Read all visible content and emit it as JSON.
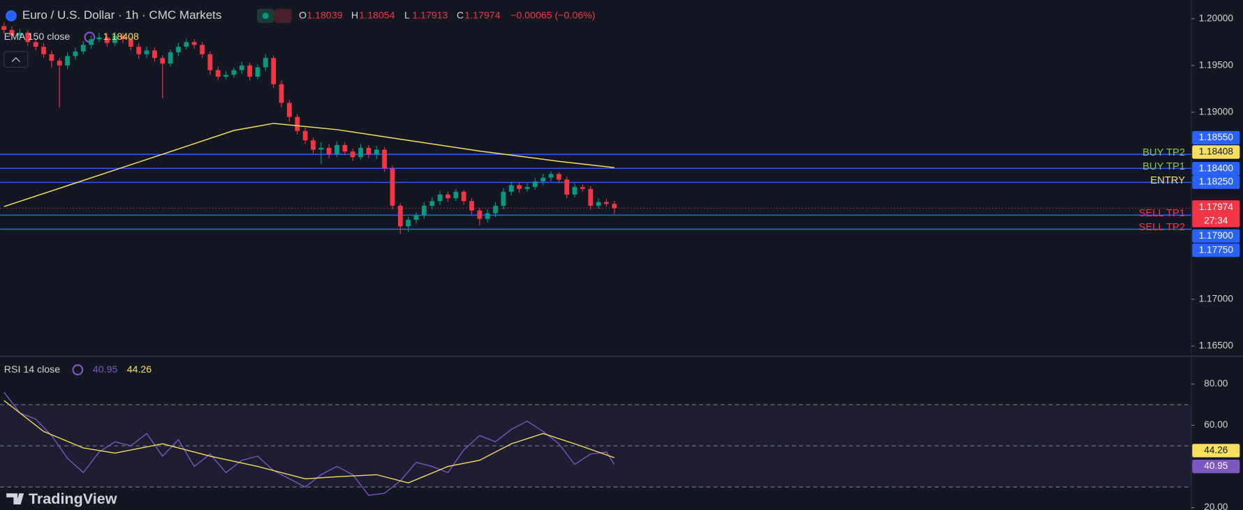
{
  "header": {
    "symbol": "Euro / U.S. Dollar · 1h · CMC Markets",
    "ohlc": [
      {
        "key": "O",
        "value": "1.18039"
      },
      {
        "key": "H",
        "value": "1.18054"
      },
      {
        "key": "L",
        "value": "1.17913"
      },
      {
        "key": "C",
        "value": "1.17974"
      }
    ],
    "change": "−0.00065 (−0.06%)",
    "brand": "TradingView"
  },
  "chart_data": [
    {
      "type": "candlestick",
      "up_color": "#089981",
      "down_color": "#f23645",
      "open": [
        1.1992,
        1.1988,
        1.1982,
        1.1985,
        1.1975,
        1.197,
        1.1962,
        1.1955,
        1.195,
        1.196,
        1.1965,
        1.1972,
        1.1978,
        1.198,
        1.1974,
        1.1982,
        1.1978,
        1.197,
        1.1962,
        1.1966,
        1.1958,
        1.1952,
        1.1964,
        1.197,
        1.1975,
        1.1972,
        1.1962,
        1.1945,
        1.1938,
        1.194,
        1.1945,
        1.195,
        1.1938,
        1.1948,
        1.1958,
        1.193,
        1.191,
        1.1895,
        1.188,
        1.187,
        1.186,
        1.1862,
        1.1855,
        1.1865,
        1.1858,
        1.1852,
        1.1862,
        1.1855,
        1.186,
        1.184,
        1.18,
        1.1778,
        1.1785,
        1.179,
        1.18,
        1.1805,
        1.1812,
        1.1808,
        1.1815,
        1.1805,
        1.1795,
        1.1786,
        1.1792,
        1.18,
        1.1815,
        1.1822,
        1.1818,
        1.182,
        1.1826,
        1.183,
        1.1834,
        1.1828,
        1.1812,
        1.182,
        1.1818,
        1.18,
        1.1804,
        1.1802
      ],
      "high": [
        1.1996,
        1.1992,
        1.1989,
        1.1988,
        1.1979,
        1.1974,
        1.1966,
        1.1958,
        1.1964,
        1.1969,
        1.1976,
        1.1982,
        1.1985,
        1.1984,
        1.1986,
        1.1985,
        1.1981,
        1.1974,
        1.197,
        1.1969,
        1.1961,
        1.1967,
        1.1974,
        1.1979,
        1.1978,
        1.1975,
        1.1965,
        1.1949,
        1.1944,
        1.1948,
        1.1954,
        1.1953,
        1.1951,
        1.1962,
        1.1961,
        1.1934,
        1.1913,
        1.1898,
        1.1884,
        1.1873,
        1.1868,
        1.1866,
        1.1869,
        1.1868,
        1.1861,
        1.1866,
        1.1865,
        1.1864,
        1.1863,
        1.1843,
        1.1803,
        1.1788,
        1.1793,
        1.1804,
        1.1809,
        1.1816,
        1.1815,
        1.1818,
        1.1817,
        1.1808,
        1.1798,
        1.1796,
        1.1804,
        1.1819,
        1.1826,
        1.1825,
        1.1824,
        1.183,
        1.1834,
        1.1837,
        1.1836,
        1.1831,
        1.1824,
        1.1823,
        1.1821,
        1.1808,
        1.1807,
        1.18054
      ],
      "low": [
        1.1984,
        1.1978,
        1.1979,
        1.1971,
        1.1966,
        1.1958,
        1.1948,
        1.1905,
        1.1946,
        1.1956,
        1.1962,
        1.1968,
        1.1975,
        1.197,
        1.1971,
        1.1974,
        1.1966,
        1.1957,
        1.1958,
        1.1954,
        1.1915,
        1.1949,
        1.196,
        1.1967,
        1.1968,
        1.1958,
        1.194,
        1.1934,
        1.1935,
        1.1937,
        1.1941,
        1.1934,
        1.1935,
        1.1944,
        1.1926,
        1.1905,
        1.189,
        1.1876,
        1.1866,
        1.1856,
        1.1845,
        1.1851,
        1.1852,
        1.1854,
        1.1848,
        1.1849,
        1.1851,
        1.185,
        1.1836,
        1.1796,
        1.177,
        1.1772,
        1.1781,
        1.1786,
        1.1796,
        1.1801,
        1.1804,
        1.1805,
        1.1801,
        1.1791,
        1.1779,
        1.1782,
        1.1788,
        1.1796,
        1.1811,
        1.1814,
        1.1815,
        1.1817,
        1.1822,
        1.1826,
        1.1824,
        1.1808,
        1.1809,
        1.1815,
        1.1796,
        1.1797,
        1.1799,
        1.17913
      ],
      "close": [
        1.1988,
        1.1982,
        1.1985,
        1.1975,
        1.197,
        1.1962,
        1.1955,
        1.195,
        1.196,
        1.1965,
        1.1972,
        1.1978,
        1.198,
        1.1974,
        1.1982,
        1.1978,
        1.197,
        1.1962,
        1.1966,
        1.1958,
        1.1952,
        1.1964,
        1.197,
        1.1975,
        1.1972,
        1.1962,
        1.1945,
        1.1938,
        1.194,
        1.1945,
        1.195,
        1.1938,
        1.1948,
        1.1958,
        1.193,
        1.191,
        1.1895,
        1.188,
        1.187,
        1.186,
        1.1862,
        1.1855,
        1.1865,
        1.1858,
        1.1852,
        1.1862,
        1.1855,
        1.186,
        1.184,
        1.18,
        1.1778,
        1.1785,
        1.179,
        1.18,
        1.1805,
        1.1812,
        1.1808,
        1.1815,
        1.1805,
        1.1795,
        1.1786,
        1.1792,
        1.18,
        1.1815,
        1.1822,
        1.1818,
        1.182,
        1.1826,
        1.183,
        1.1834,
        1.1828,
        1.1812,
        1.182,
        1.1818,
        1.18,
        1.1804,
        1.1802,
        1.17974
      ],
      "ylim": [
        1.1639,
        1.202
      ],
      "yticks": [
        {
          "value": 1.2,
          "label": "1.20000"
        },
        {
          "value": 1.195,
          "label": "1.19500"
        },
        {
          "value": 1.19,
          "label": "1.19000"
        },
        {
          "value": 1.17,
          "label": "1.17000"
        },
        {
          "value": 1.165,
          "label": "1.16500"
        }
      ],
      "ema": {
        "name": "EMA 150 close",
        "color": "#f7e05e",
        "x": [
          0,
          10,
          20,
          29,
          34,
          42,
          50,
          60,
          70,
          77
        ],
        "values": [
          1.17992,
          1.18271,
          1.18551,
          1.18805,
          1.18881,
          1.18814,
          1.18712,
          1.18585,
          1.18475,
          1.18408
        ],
        "last_label": "1.18408"
      },
      "line_color": "#2962ff",
      "levels": [
        {
          "name": "BUY TP2",
          "value": 1.1855,
          "label": "1.18550",
          "color": "#8bc34a"
        },
        {
          "name": "BUY TP1",
          "value": 1.184,
          "label": "1.18400",
          "color": "#8bc34a"
        },
        {
          "name": "ENTRY",
          "value": 1.1825,
          "label": "1.18250",
          "color": "#f7e05e"
        },
        {
          "name": "SELL TP1",
          "value": 1.179,
          "label": "1.17900",
          "color": "#f23645"
        },
        {
          "name": "SELL TP2",
          "value": 1.1775,
          "label": "1.17750",
          "color": "#f23645"
        }
      ],
      "last_price": {
        "label": "1.17974",
        "countdown": "27:34"
      }
    },
    {
      "type": "line",
      "title": "RSI 14 close",
      "ylim": [
        18.85,
        93.46
      ],
      "yticks": [
        {
          "value": 80,
          "label": "80.00"
        },
        {
          "value": 60,
          "label": "60.00"
        },
        {
          "value": 20,
          "label": "20.00"
        }
      ],
      "bands": [
        70,
        50,
        30
      ],
      "series": [
        {
          "color": "#7e57c2",
          "x": [
            0,
            2,
            4,
            6,
            8,
            10,
            12,
            14,
            16,
            18,
            20,
            22,
            24,
            26,
            28,
            30,
            32,
            34,
            36,
            38,
            40,
            42,
            44,
            46,
            48,
            50,
            52,
            54,
            56,
            58,
            60,
            62,
            64,
            66,
            68,
            70,
            72,
            74,
            76,
            77
          ],
          "values": [
            76,
            66,
            63,
            55,
            44,
            37,
            47,
            52,
            50,
            56,
            45,
            53,
            40,
            46,
            37,
            43,
            45,
            38,
            34,
            30,
            36,
            40,
            36,
            26,
            27,
            33,
            42,
            40,
            37,
            48,
            55,
            52,
            58,
            62,
            57,
            51,
            41,
            46,
            47,
            40.95
          ],
          "last_label": "40.95"
        },
        {
          "color": "#f7e05e",
          "x": [
            0,
            5,
            10,
            14,
            20,
            26,
            32,
            38,
            42,
            47,
            51,
            56,
            60,
            64,
            68,
            72,
            77
          ],
          "values": [
            72,
            57,
            49,
            46.5,
            51,
            45,
            40,
            34,
            35,
            36,
            32,
            40,
            43,
            51,
            56,
            51,
            44.26
          ],
          "last_label": "44.26"
        }
      ]
    }
  ]
}
